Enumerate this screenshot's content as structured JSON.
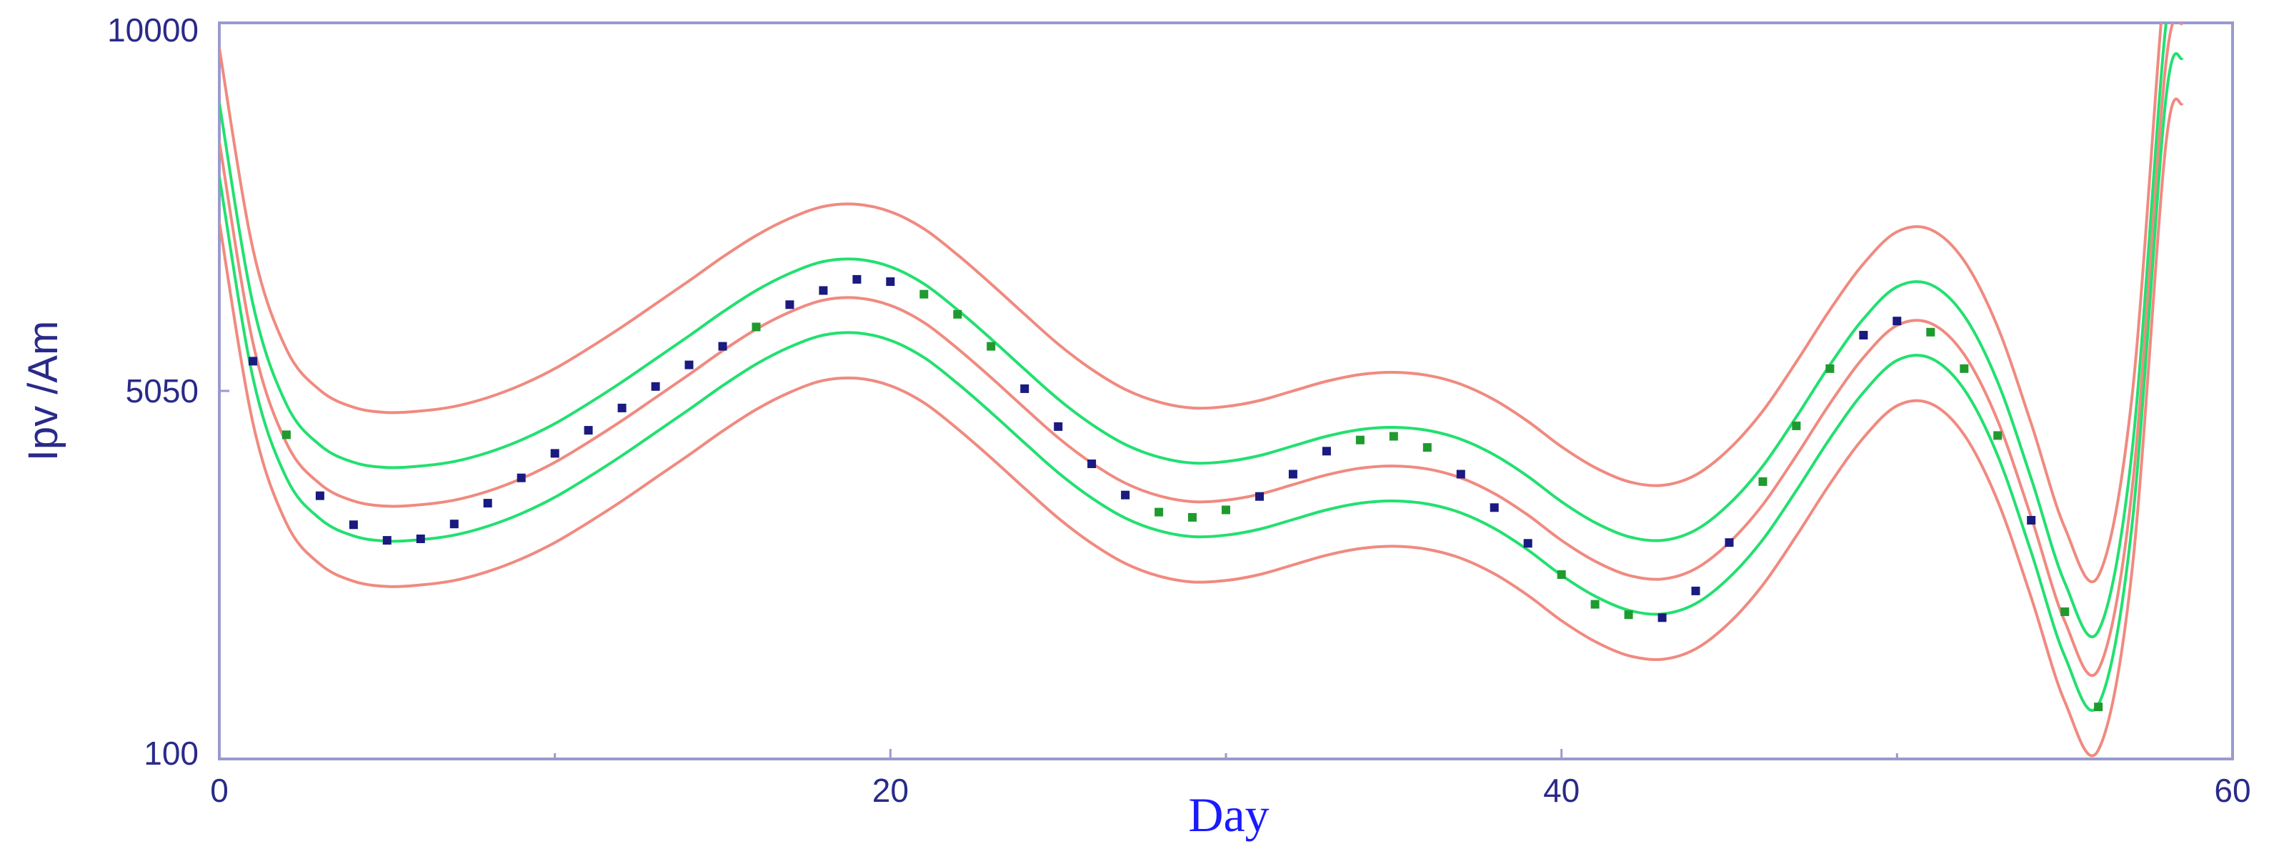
{
  "chart_data": {
    "type": "scatter",
    "title": "",
    "xlabel": "Day",
    "ylabel": "Ipv /Am",
    "xlim": [
      0,
      60
    ],
    "ylim": [
      100,
      10000
    ],
    "x_ticks": [
      "0",
      "20",
      "40",
      "60"
    ],
    "y_ticks": [
      "100",
      "5050",
      "10000"
    ],
    "grid": false,
    "colors": {
      "frame": "#9a9ad0",
      "tick_text": "#2a2a8a",
      "xlabel_text": "#1a1aff",
      "blue_points": "#1a1a80",
      "green_points": "#1f9a2f",
      "inner_band": "#22e070",
      "outer_band": "#f08a80"
    },
    "fit_curve_points": {
      "x": [
        0,
        1,
        2,
        3,
        4,
        5,
        6,
        7,
        8,
        9,
        10,
        11,
        12,
        13,
        14,
        15,
        16,
        17,
        18,
        19,
        20,
        21,
        22,
        23,
        24,
        25,
        26,
        27,
        28,
        29,
        30,
        31,
        32,
        33,
        34,
        35,
        36,
        37,
        38,
        39,
        40,
        41,
        42,
        43,
        44,
        45,
        46,
        47,
        48,
        49,
        50,
        51,
        52,
        53,
        54,
        55,
        56,
        57,
        58,
        58.5
      ],
      "y": [
        8400,
        5700,
        4350,
        3800,
        3570,
        3500,
        3520,
        3580,
        3700,
        3870,
        4090,
        4360,
        4650,
        4960,
        5270,
        5590,
        5880,
        6110,
        6270,
        6300,
        6200,
        5970,
        5620,
        5230,
        4820,
        4420,
        4080,
        3810,
        3640,
        3560,
        3580,
        3660,
        3790,
        3920,
        4010,
        4040,
        4000,
        3880,
        3670,
        3380,
        3040,
        2760,
        2570,
        2520,
        2660,
        3010,
        3520,
        4180,
        4880,
        5500,
        5930,
        5960,
        5540,
        4650,
        3350,
        1950,
        1300,
        3700,
        9400,
        10000
      ]
    },
    "band_offsets": {
      "inner_upper": 520,
      "inner_lower": -470,
      "outer_upper": 1260,
      "outer_lower": -1080
    },
    "series": [
      {
        "color": "blue",
        "x": [
          1,
          3,
          4,
          5,
          6,
          7,
          8,
          9,
          10,
          11,
          12,
          13,
          14,
          15,
          17,
          18,
          19,
          20,
          24,
          25,
          26,
          27,
          31,
          32,
          33,
          37,
          38,
          39,
          43,
          44,
          45,
          49,
          50,
          54
        ],
        "y": [
          5450,
          3640,
          3250,
          3040,
          3060,
          3260,
          3540,
          3880,
          4210,
          4520,
          4820,
          5110,
          5400,
          5650,
          6210,
          6400,
          6550,
          6520,
          5080,
          4570,
          4070,
          3650,
          3630,
          3930,
          4240,
          3930,
          3480,
          3000,
          2000,
          2360,
          3010,
          5800,
          5990,
          3310
        ]
      },
      {
        "color": "green",
        "x": [
          2,
          16,
          21,
          22,
          23,
          28,
          29,
          30,
          34,
          35,
          36,
          40,
          41,
          42,
          46,
          47,
          48,
          51,
          52,
          53,
          55,
          56
        ],
        "y": [
          4460,
          5910,
          6350,
          6080,
          5650,
          3420,
          3350,
          3450,
          4390,
          4440,
          4290,
          2580,
          2180,
          2040,
          3830,
          4580,
          5350,
          5840,
          5350,
          4450,
          2080,
          800
        ]
      }
    ]
  }
}
